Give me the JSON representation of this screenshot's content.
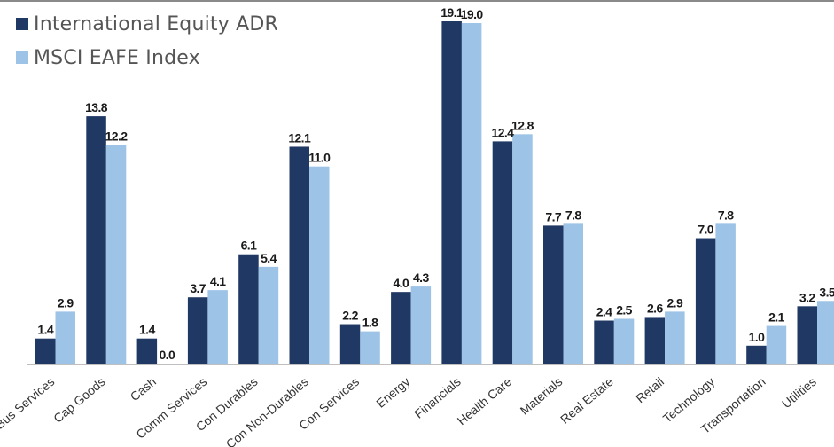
{
  "colors": {
    "series_0": "#1f3864",
    "series_1": "#9dc3e6",
    "baseline": "#bfbfbf",
    "top_border": "#8a8a8a"
  },
  "chart_data": {
    "type": "bar",
    "title": "",
    "xlabel": "",
    "ylabel": "",
    "ylim": [
      0,
      20
    ],
    "grid": false,
    "legend_position": "top-left",
    "categories": [
      "Bus Services",
      "Cap Goods",
      "Cash",
      "Comm Services",
      "Con Durables",
      "Con Non-Durables",
      "Con Services",
      "Energy",
      "Financials",
      "Health Care",
      "Materials",
      "Real Estate",
      "Retail",
      "Technology",
      "Transportation",
      "Utilities"
    ],
    "series": [
      {
        "name": "International Equity ADR",
        "values": [
          1.4,
          13.8,
          1.4,
          3.7,
          6.1,
          12.1,
          2.2,
          4.0,
          19.1,
          12.4,
          7.7,
          2.4,
          2.6,
          7.0,
          1.0,
          3.2
        ],
        "labels": [
          "1.4",
          "13.8",
          "1.4",
          "3.7",
          "6.1",
          "12.1",
          "2.2",
          "4.0",
          "19.1",
          "12.4",
          "7.7",
          "2.4",
          "2.6",
          "7.0",
          "1.0",
          "3.2"
        ]
      },
      {
        "name": "MSCI EAFE Index",
        "values": [
          2.9,
          12.2,
          0.0,
          4.1,
          5.4,
          11.0,
          1.8,
          4.3,
          19.0,
          12.8,
          7.8,
          2.5,
          2.9,
          7.8,
          2.1,
          3.5
        ],
        "labels": [
          "2.9",
          "12.2",
          "0.0",
          "4.1",
          "5.4",
          "11.0",
          "1.8",
          "4.3",
          "19.0",
          "12.8",
          "7.8",
          "2.5",
          "2.9",
          "7.8",
          "2.1",
          "3.5"
        ]
      }
    ]
  }
}
